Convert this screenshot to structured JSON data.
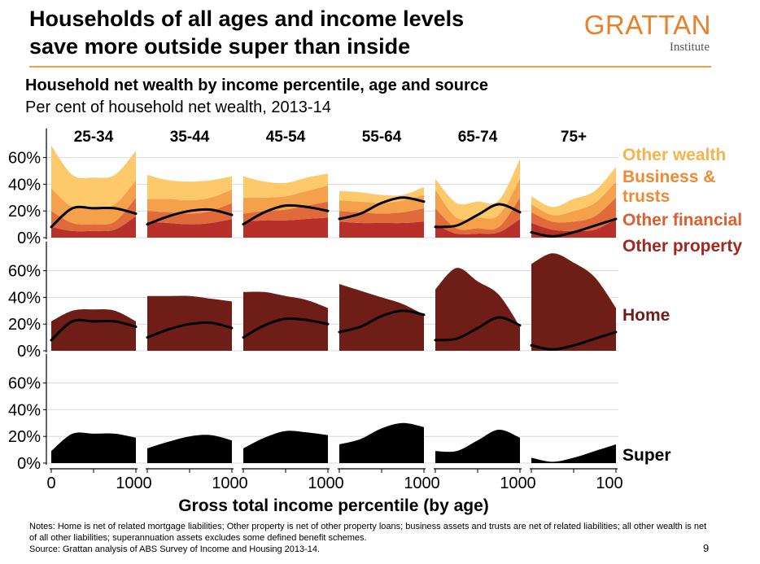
{
  "header": {
    "title_line1": "Households of all ages and income levels",
    "title_line2": "save more outside super than inside",
    "logo_main": "GRATTAN",
    "logo_sub": "Institute",
    "subtitle": "Household net wealth by income percentile, age and source",
    "subsubtitle": "Per cent of household net wealth, 2013-14"
  },
  "footer": {
    "notes": "Notes: Home is net of related mortgage liabilities; Other property is net of other property loans; business assets and trusts are net of related liabilities; all other wealth is net of all other liabilities; superannuation assets excludes some defined benefit schemes.",
    "source": "Source: Grattan analysis of ABS Survey of Income and Housing 2013-14.",
    "page_number": "9"
  },
  "colors": {
    "other_wealth": "#fdc96a",
    "business_trusts": "#f5a14b",
    "other_financial": "#e06a3a",
    "other_property": "#b7312a",
    "home": "#6e1d17",
    "super": "#000000",
    "gridline": "#d9d9d9",
    "label_orange_light": "#f7b34c",
    "label_orange": "#ef8a36",
    "label_orange_dark": "#dd5f2e",
    "label_red": "#a3271f",
    "label_home": "#6e1d17",
    "logo": "#e8822a",
    "rule": "#f0a23c"
  },
  "chart_data": {
    "type": "area",
    "x_label": "Gross total income percentile (by age)",
    "x_ticks": [
      "0",
      "100"
    ],
    "y_ticks": [
      "0%",
      "20%",
      "40%",
      "60%"
    ],
    "ylim": [
      0,
      80
    ],
    "xlim": [
      0,
      100
    ],
    "age_groups": [
      "25-34",
      "35-44",
      "45-54",
      "55-64",
      "65-74",
      "75+"
    ],
    "x": [
      0,
      25,
      50,
      75,
      100
    ],
    "rows": [
      {
        "name": "Other assets",
        "stack": [
          "Other property",
          "Other financial",
          "Business & trusts",
          "Other wealth"
        ],
        "panels": {
          "25-34": {
            "Other property": [
              8,
              5,
              5,
              6,
              16
            ],
            "Other financial": [
              12,
              6,
              5,
              6,
              14
            ],
            "Business & trusts": [
              17,
              12,
              13,
              13,
              13
            ],
            "Other wealth": [
              32,
              24,
              22,
              22,
              22
            ]
          },
          "35-44": {
            "Other property": [
              12,
              11,
              10,
              11,
              14
            ],
            "Other financial": [
              8,
              8,
              8,
              9,
              12
            ],
            "Business & trusts": [
              9,
              10,
              10,
              10,
              10
            ],
            "Other wealth": [
              18,
              14,
              14,
              13,
              10
            ]
          },
          "45-54": {
            "Other property": [
              12,
              13,
              13,
              14,
              15
            ],
            "Other financial": [
              6,
              7,
              8,
              10,
              12
            ],
            "Business & trusts": [
              12,
              10,
              10,
              11,
              12
            ],
            "Other wealth": [
              16,
              12,
              10,
              10,
              9
            ]
          },
          "55-64": {
            "Other property": [
              12,
              11,
              11,
              11,
              12
            ],
            "Other financial": [
              8,
              8,
              7,
              8,
              10
            ],
            "Business & trusts": [
              8,
              8,
              8,
              9,
              10
            ],
            "Other wealth": [
              7,
              7,
              6,
              4,
              6
            ]
          },
          "65-74": {
            "Other property": [
              10,
              3,
              3,
              4,
              14
            ],
            "Other financial": [
              12,
              4,
              4,
              4,
              16
            ],
            "Business & trusts": [
              14,
              8,
              8,
              9,
              14
            ],
            "Other wealth": [
              8,
              11,
              12,
              11,
              15
            ]
          },
          "75+": {
            "Other property": [
              11,
              6,
              5,
              6,
              14
            ],
            "Other financial": [
              8,
              6,
              7,
              10,
              16
            ],
            "Business & trusts": [
              6,
              5,
              8,
              10,
              12
            ],
            "Other wealth": [
              6,
              6,
              9,
              9,
              11
            ]
          }
        }
      },
      {
        "name": "Home",
        "stack": [
          "Home"
        ],
        "panels": {
          "25-34": {
            "Home": [
              22,
              30,
              31,
              30,
              22
            ]
          },
          "35-44": {
            "Home": [
              41,
              41,
              41,
              39,
              37
            ]
          },
          "45-54": {
            "Home": [
              44,
              44,
              41,
              38,
              32
            ]
          },
          "55-64": {
            "Home": [
              50,
              45,
              40,
              35,
              27
            ]
          },
          "65-74": {
            "Home": [
              46,
              62,
              52,
              42,
              18
            ]
          },
          "75+": {
            "Home": [
              65,
              73,
              66,
              55,
              32
            ]
          }
        }
      },
      {
        "name": "Super",
        "stack": [
          "Super"
        ],
        "panels": {
          "25-34": {
            "Super": [
              9,
              22,
              22,
              22,
              19
            ]
          },
          "35-44": {
            "Super": [
              11,
              16,
              20,
              21,
              17
            ]
          },
          "45-54": {
            "Super": [
              11,
              19,
              24,
              23,
              21
            ]
          },
          "55-64": {
            "Super": [
              14,
              18,
              26,
              30,
              27
            ]
          },
          "65-74": {
            "Super": [
              9,
              9,
              17,
              25,
              19
            ]
          },
          "75+": {
            "Super": [
              4,
              1,
              4,
              9,
              14
            ]
          }
        }
      }
    ],
    "super_line": {
      "25-34": [
        8,
        22,
        22,
        22,
        18
      ],
      "35-44": [
        10,
        16,
        20,
        21,
        17
      ],
      "45-54": [
        10,
        19,
        24,
        23,
        20
      ],
      "55-64": [
        14,
        18,
        26,
        30,
        27
      ],
      "65-74": [
        8,
        9,
        17,
        25,
        19
      ],
      "75+": [
        4,
        1,
        4,
        9,
        14
      ]
    },
    "legend": {
      "other_wealth": "Other wealth",
      "business_line1": "Business &",
      "business_line2": "trusts",
      "other_financial": "Other financial",
      "other_property": "Other property",
      "home": "Home",
      "super": "Super"
    }
  }
}
